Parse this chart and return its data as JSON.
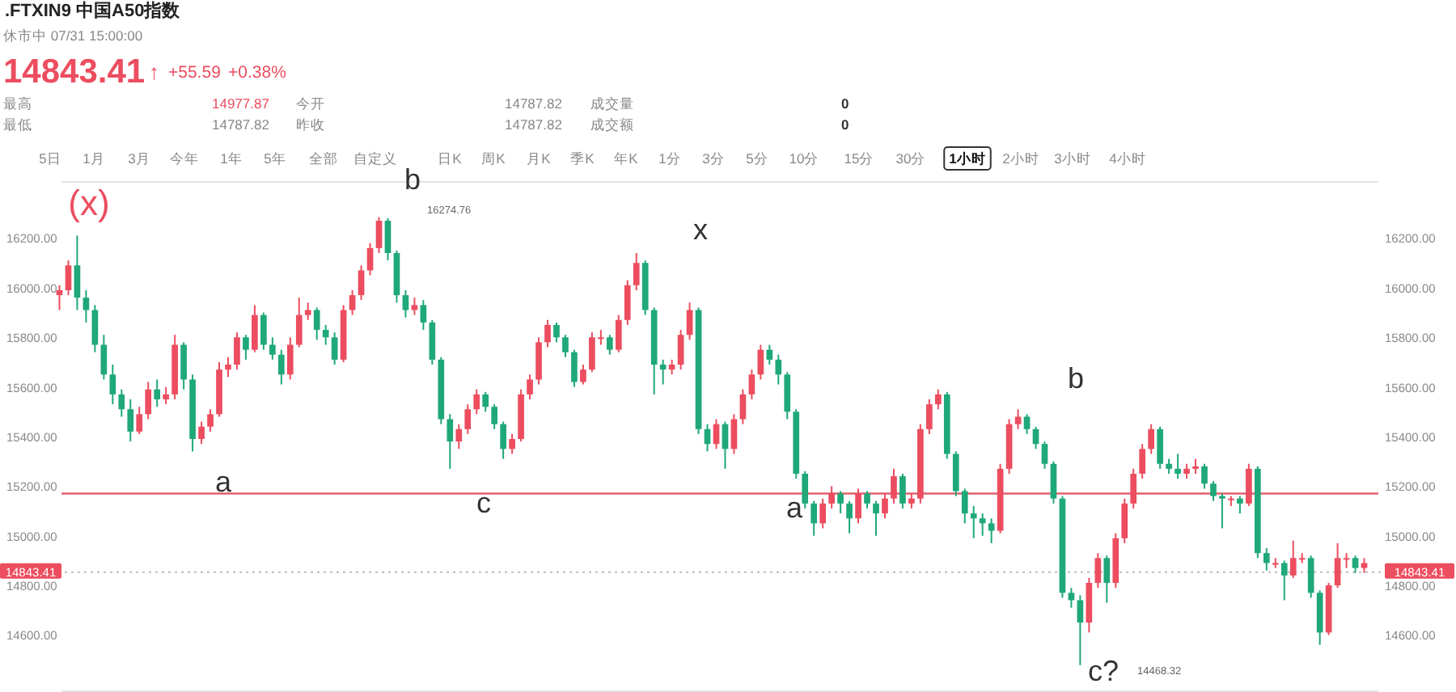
{
  "chart_data": {
    "type": "candlestick",
    "title": ".FTXIN9  中国A50指数",
    "subtitle": "休市中 07/31 15:00:00",
    "categories": [
      null,
      null,
      null,
      null,
      null,
      null,
      null,
      null,
      null,
      null,
      null,
      null,
      null,
      null,
      null,
      null,
      null,
      null,
      null,
      null,
      null,
      null,
      null,
      null,
      null,
      null,
      null,
      null,
      null,
      null,
      null,
      null,
      null,
      null,
      null,
      null,
      null,
      null,
      null,
      null,
      null,
      null,
      null,
      null,
      null,
      null,
      null,
      null,
      null,
      null,
      null,
      null,
      null,
      null,
      null,
      null,
      null,
      null,
      null,
      null,
      null,
      null,
      null,
      null,
      null,
      null,
      null,
      null,
      null,
      null,
      null,
      null,
      null,
      null,
      null,
      null,
      null,
      null,
      null,
      null,
      null,
      null,
      null,
      null,
      null,
      null,
      null,
      null,
      null,
      null,
      null,
      null,
      null,
      null,
      null,
      null,
      null,
      null,
      null,
      null,
      null,
      null,
      null,
      null,
      null,
      null,
      null,
      null,
      null,
      null,
      null,
      null,
      null,
      null,
      null,
      null,
      null,
      null,
      null,
      null,
      null,
      null,
      null,
      null,
      null,
      null,
      null,
      null,
      null,
      null,
      null,
      null,
      null,
      null,
      null,
      null,
      null,
      null,
      null,
      null,
      null,
      null,
      null,
      null,
      null,
      null,
      null,
      null
    ],
    "ohlc": [
      [
        15960,
        16000,
        15900,
        15980
      ],
      [
        15980,
        16100,
        15960,
        16080
      ],
      [
        16080,
        16200,
        15900,
        15950
      ],
      [
        15950,
        15980,
        15850,
        15900
      ],
      [
        15900,
        15920,
        15730,
        15760
      ],
      [
        15760,
        15800,
        15620,
        15640
      ],
      [
        15640,
        15680,
        15520,
        15560
      ],
      [
        15560,
        15580,
        15470,
        15500
      ],
      [
        15500,
        15540,
        15370,
        15410
      ],
      [
        15410,
        15510,
        15400,
        15480
      ],
      [
        15480,
        15610,
        15460,
        15580
      ],
      [
        15580,
        15620,
        15510,
        15540
      ],
      [
        15540,
        15590,
        15520,
        15560
      ],
      [
        15560,
        15800,
        15540,
        15760
      ],
      [
        15760,
        15770,
        15580,
        15620
      ],
      [
        15620,
        15640,
        15330,
        15380
      ],
      [
        15380,
        15450,
        15360,
        15430
      ],
      [
        15430,
        15500,
        15410,
        15480
      ],
      [
        15480,
        15690,
        15470,
        15660
      ],
      [
        15660,
        15710,
        15630,
        15680
      ],
      [
        15680,
        15810,
        15660,
        15790
      ],
      [
        15790,
        15800,
        15700,
        15740
      ],
      [
        15740,
        15920,
        15730,
        15880
      ],
      [
        15880,
        15890,
        15740,
        15760
      ],
      [
        15760,
        15790,
        15700,
        15720
      ],
      [
        15720,
        15740,
        15600,
        15640
      ],
      [
        15640,
        15790,
        15620,
        15760
      ],
      [
        15760,
        15950,
        15750,
        15880
      ],
      [
        15880,
        15930,
        15860,
        15900
      ],
      [
        15900,
        15910,
        15780,
        15820
      ],
      [
        15820,
        15840,
        15760,
        15790
      ],
      [
        15790,
        15810,
        15680,
        15700
      ],
      [
        15700,
        15920,
        15690,
        15900
      ],
      [
        15900,
        15980,
        15880,
        15960
      ],
      [
        15960,
        16080,
        15940,
        16060
      ],
      [
        16060,
        16170,
        16040,
        16150
      ],
      [
        16150,
        16274.76,
        16130,
        16260
      ],
      [
        16260,
        16270,
        16100,
        16130
      ],
      [
        16130,
        16140,
        15930,
        15960
      ],
      [
        15960,
        15980,
        15870,
        15900
      ],
      [
        15900,
        15950,
        15880,
        15920
      ],
      [
        15920,
        15940,
        15820,
        15850
      ],
      [
        15850,
        15860,
        15680,
        15700
      ],
      [
        15700,
        15710,
        15440,
        15460
      ],
      [
        15460,
        15480,
        15260,
        15370
      ],
      [
        15370,
        15440,
        15340,
        15420
      ],
      [
        15420,
        15520,
        15400,
        15500
      ],
      [
        15500,
        15580,
        15480,
        15560
      ],
      [
        15560,
        15570,
        15490,
        15510
      ],
      [
        15510,
        15520,
        15420,
        15440
      ],
      [
        15440,
        15450,
        15300,
        15340
      ],
      [
        15340,
        15400,
        15320,
        15380
      ],
      [
        15380,
        15580,
        15370,
        15560
      ],
      [
        15560,
        15640,
        15540,
        15620
      ],
      [
        15620,
        15790,
        15600,
        15770
      ],
      [
        15770,
        15860,
        15750,
        15840
      ],
      [
        15840,
        15850,
        15770,
        15790
      ],
      [
        15790,
        15800,
        15710,
        15730
      ],
      [
        15730,
        15740,
        15590,
        15610
      ],
      [
        15610,
        15680,
        15600,
        15660
      ],
      [
        15660,
        15810,
        15650,
        15790
      ],
      [
        15790,
        15820,
        15760,
        15790
      ],
      [
        15790,
        15800,
        15720,
        15740
      ],
      [
        15740,
        15880,
        15730,
        15860
      ],
      [
        15860,
        16020,
        15840,
        16000
      ],
      [
        16000,
        16130,
        15980,
        16090
      ],
      [
        16090,
        16100,
        15880,
        15900
      ],
      [
        15900,
        15910,
        15560,
        15680
      ],
      [
        15680,
        15700,
        15600,
        15660
      ],
      [
        15660,
        15700,
        15640,
        15680
      ],
      [
        15680,
        15820,
        15660,
        15800
      ],
      [
        15800,
        15930,
        15780,
        15900
      ],
      [
        15900,
        15910,
        15400,
        15420
      ],
      [
        15420,
        15440,
        15330,
        15360
      ],
      [
        15360,
        15460,
        15340,
        15440
      ],
      [
        15440,
        15450,
        15260,
        15340
      ],
      [
        15340,
        15480,
        15320,
        15460
      ],
      [
        15460,
        15580,
        15440,
        15560
      ],
      [
        15560,
        15660,
        15540,
        15640
      ],
      [
        15640,
        15760,
        15620,
        15740
      ],
      [
        15740,
        15760,
        15680,
        15700
      ],
      [
        15700,
        15720,
        15600,
        15640
      ],
      [
        15640,
        15650,
        15460,
        15490
      ],
      [
        15490,
        15500,
        15220,
        15240
      ],
      [
        15240,
        15250,
        15100,
        15120
      ],
      [
        15120,
        15130,
        14990,
        15040
      ],
      [
        15040,
        15140,
        15020,
        15120
      ],
      [
        15120,
        15190,
        15100,
        15160
      ],
      [
        15160,
        15170,
        15080,
        15120
      ],
      [
        15120,
        15130,
        15000,
        15060
      ],
      [
        15060,
        15180,
        15040,
        15160
      ],
      [
        15160,
        15170,
        15100,
        15120
      ],
      [
        15120,
        15130,
        14990,
        15080
      ],
      [
        15080,
        15160,
        15060,
        15140
      ],
      [
        15140,
        15260,
        15120,
        15230
      ],
      [
        15230,
        15240,
        15100,
        15120
      ],
      [
        15120,
        15160,
        15100,
        15140
      ],
      [
        15140,
        15440,
        15120,
        15420
      ],
      [
        15420,
        15540,
        15400,
        15520
      ],
      [
        15520,
        15580,
        15500,
        15560
      ],
      [
        15560,
        15570,
        15300,
        15320
      ],
      [
        15320,
        15330,
        15150,
        15170
      ],
      [
        15170,
        15180,
        15040,
        15080
      ],
      [
        15080,
        15110,
        14980,
        15060
      ],
      [
        15060,
        15080,
        14990,
        15040
      ],
      [
        15040,
        15060,
        14960,
        15010
      ],
      [
        15010,
        15280,
        15000,
        15260
      ],
      [
        15260,
        15460,
        15240,
        15440
      ],
      [
        15440,
        15500,
        15420,
        15470
      ],
      [
        15470,
        15480,
        15400,
        15420
      ],
      [
        15420,
        15430,
        15340,
        15360
      ],
      [
        15360,
        15370,
        15260,
        15280
      ],
      [
        15280,
        15290,
        15120,
        15140
      ],
      [
        15140,
        15150,
        14740,
        14760
      ],
      [
        14760,
        14780,
        14700,
        14730
      ],
      [
        14730,
        14750,
        14468.32,
        14640
      ],
      [
        14640,
        14820,
        14600,
        14800
      ],
      [
        14800,
        14920,
        14780,
        14900
      ],
      [
        14900,
        14910,
        14720,
        14800
      ],
      [
        14800,
        15000,
        14780,
        14980
      ],
      [
        14980,
        15140,
        14960,
        15120
      ],
      [
        15120,
        15260,
        15100,
        15240
      ],
      [
        15240,
        15360,
        15220,
        15340
      ],
      [
        15340,
        15440,
        15320,
        15420
      ],
      [
        15420,
        15430,
        15260,
        15280
      ],
      [
        15280,
        15300,
        15240,
        15260
      ],
      [
        15260,
        15320,
        15220,
        15240
      ],
      [
        15240,
        15280,
        15220,
        15260
      ],
      [
        15260,
        15300,
        15240,
        15270
      ],
      [
        15270,
        15280,
        15180,
        15200
      ],
      [
        15200,
        15210,
        15130,
        15150
      ],
      [
        15150,
        15160,
        15020,
        15140
      ],
      [
        15140,
        15150,
        15110,
        15140
      ],
      [
        15140,
        15150,
        15080,
        15120
      ],
      [
        15120,
        15280,
        15110,
        15260
      ],
      [
        15260,
        15270,
        14900,
        14920
      ],
      [
        14920,
        14940,
        14850,
        14880
      ],
      [
        14880,
        14900,
        14860,
        14880
      ],
      [
        14880,
        14890,
        14730,
        14830
      ],
      [
        14830,
        14970,
        14820,
        14900
      ],
      [
        14900,
        14920,
        14880,
        14900
      ],
      [
        14900,
        14910,
        14740,
        14760
      ],
      [
        14760,
        14770,
        14550,
        14600
      ],
      [
        14600,
        14800,
        14590,
        14790
      ],
      [
        14790,
        14960,
        14780,
        14900
      ],
      [
        14900,
        14920,
        14860,
        14900
      ],
      [
        14900,
        14910,
        14840,
        14860
      ],
      [
        14860,
        14900,
        14840,
        14880
      ]
    ],
    "ylim": [
      14360,
      16420
    ],
    "yticks": [
      {
        "value": 14600,
        "label": "14600.00"
      },
      {
        "value": 14800,
        "label": "14800.00"
      },
      {
        "value": 15000,
        "label": "15000.00"
      },
      {
        "value": 15200,
        "label": "15200.00"
      },
      {
        "value": 15400,
        "label": "15400.00"
      },
      {
        "value": 15600,
        "label": "15600.00"
      },
      {
        "value": 15800,
        "label": "15800.00"
      },
      {
        "value": 16000,
        "label": "16000.00"
      },
      {
        "value": 16200,
        "label": "16200.00"
      }
    ],
    "y2lim": [
      14360,
      16420
    ],
    "y2ticks": [
      {
        "value": 14600,
        "label": "14600.00"
      },
      {
        "value": 14800,
        "label": "14800.00"
      },
      {
        "value": 15000,
        "label": "15000.00"
      },
      {
        "value": 15200,
        "label": "15200.00"
      },
      {
        "value": 15400,
        "label": "15400.00"
      },
      {
        "value": 15600,
        "label": "15600.00"
      },
      {
        "value": 15800,
        "label": "15800.00"
      },
      {
        "value": 16000,
        "label": "16000.00"
      },
      {
        "value": 16200,
        "label": "16200.00"
      }
    ],
    "ref_lines": [
      {
        "axis": "y",
        "value": 14843.41,
        "label": "14843.41",
        "color": "#bbbbbb",
        "line_style": "dotted"
      },
      {
        "axis": "y",
        "value": 15160,
        "color": "#e0606e",
        "line_style": "solid"
      }
    ],
    "annotations": [
      "14843.41",
      "↑",
      "+55.59",
      "+0.38%",
      "最高",
      "14977.87",
      "今开",
      "14787.82",
      "成交量",
      "0",
      "最低",
      "14787.82",
      "昨收",
      "14787.82",
      "成交额",
      "0",
      "5日",
      "1月",
      "3月",
      "今年",
      "1年",
      "5年",
      "全部",
      "自定义",
      "日K",
      "周K",
      "月K",
      "季K",
      "年K",
      "1分",
      "3分",
      "5分",
      "10分",
      "15分",
      "30分",
      "1小时",
      "2小时",
      "3小时",
      "4小时",
      "(x)",
      "b",
      "16274.76",
      "x",
      "a",
      "c",
      "a",
      "b",
      "c?",
      "14468.32"
    ]
  }
}
